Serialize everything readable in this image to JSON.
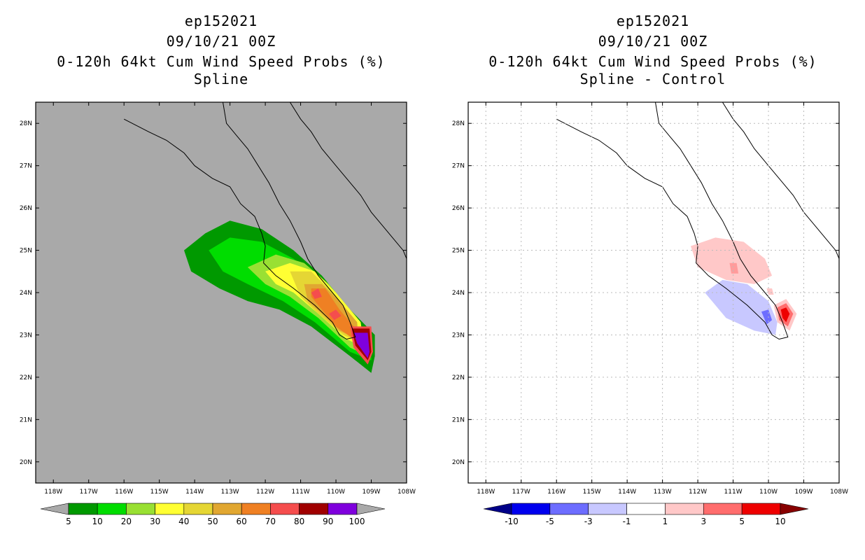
{
  "chart_data": [
    {
      "type": "heatmap",
      "storm_id": "ep152021",
      "valid_time": "09/10/21 00Z",
      "product": "0-120h 64kt Cum Wind Speed Probs (%)",
      "subtitle": "Spline",
      "xlim": [
        -118.5,
        -108
      ],
      "ylim": [
        19.5,
        28.5
      ],
      "x_ticks": [
        "118W",
        "117W",
        "116W",
        "115W",
        "114W",
        "113W",
        "112W",
        "111W",
        "110W",
        "109W",
        "108W"
      ],
      "y_ticks": [
        "20N",
        "21N",
        "22N",
        "23N",
        "24N",
        "25N",
        "26N",
        "27N",
        "28N"
      ],
      "background_color": "#a9a9a9",
      "grid": false,
      "colorbar": {
        "labels": [
          "5",
          "10",
          "20",
          "30",
          "40",
          "50",
          "60",
          "70",
          "80",
          "90",
          "100"
        ],
        "colors": [
          "#009900",
          "#00dd00",
          "#99e033",
          "#ffff33",
          "#e5d634",
          "#e1a731",
          "#ef8023",
          "#f54d4d",
          "#a00000",
          "#7f00dd"
        ],
        "below_color": "#a9a9a9",
        "above_color": "#a9a9a9"
      },
      "contours": [
        {
          "level": 5,
          "color": "#009900",
          "polygon": [
            [
              -114.3,
              25
            ],
            [
              -113.7,
              25.4
            ],
            [
              -113,
              25.7
            ],
            [
              -112.1,
              25.5
            ],
            [
              -111.2,
              25.0
            ],
            [
              -110.4,
              24.4
            ],
            [
              -109.6,
              23.6
            ],
            [
              -108.9,
              23
            ],
            [
              -108.9,
              22.5
            ],
            [
              -109,
              22.1
            ],
            [
              -109.6,
              22.5
            ],
            [
              -110.7,
              23.2
            ],
            [
              -111.6,
              23.6
            ],
            [
              -112.5,
              23.8
            ],
            [
              -113.3,
              24.1
            ],
            [
              -114.1,
              24.5
            ]
          ]
        },
        {
          "level": 10,
          "color": "#00dd00",
          "polygon": [
            [
              -113.6,
              25
            ],
            [
              -113.0,
              25.3
            ],
            [
              -112.1,
              25.2
            ],
            [
              -111.2,
              24.8
            ],
            [
              -110.3,
              24.2
            ],
            [
              -109.5,
              23.4
            ],
            [
              -109.0,
              22.8
            ],
            [
              -109.0,
              22.4
            ],
            [
              -109.6,
              22.6
            ],
            [
              -110.6,
              23.3
            ],
            [
              -111.5,
              23.8
            ],
            [
              -112.5,
              24.2
            ],
            [
              -113.2,
              24.5
            ]
          ]
        },
        {
          "level": 20,
          "color": "#99e033",
          "polygon": [
            [
              -112.5,
              24.6
            ],
            [
              -111.7,
              24.9
            ],
            [
              -110.9,
              24.7
            ],
            [
              -110.2,
              24.2
            ],
            [
              -109.4,
              23.4
            ],
            [
              -109.1,
              22.8
            ],
            [
              -109.1,
              22.5
            ],
            [
              -109.6,
              22.7
            ],
            [
              -110.5,
              23.4
            ],
            [
              -111.3,
              23.9
            ],
            [
              -112.0,
              24.2
            ]
          ]
        },
        {
          "level": 30,
          "color": "#ffff33",
          "polygon": [
            [
              -112.0,
              24.5
            ],
            [
              -111.3,
              24.7
            ],
            [
              -110.6,
              24.5
            ],
            [
              -110.0,
              24.0
            ],
            [
              -109.3,
              23.3
            ],
            [
              -109.2,
              22.7
            ],
            [
              -109.7,
              22.9
            ],
            [
              -110.5,
              23.5
            ],
            [
              -111.2,
              24.0
            ],
            [
              -111.7,
              24.2
            ]
          ]
        },
        {
          "level": 40,
          "color": "#e5d634",
          "polygon": [
            [
              -111.3,
              24.5
            ],
            [
              -110.7,
              24.5
            ],
            [
              -110.1,
              24.0
            ],
            [
              -109.4,
              23.3
            ],
            [
              -109.3,
              22.8
            ],
            [
              -109.8,
              23.0
            ],
            [
              -110.5,
              23.5
            ],
            [
              -111.0,
              23.9
            ]
          ]
        },
        {
          "level": 50,
          "color": "#e1a731",
          "polygon": [
            [
              -110.9,
              24.2
            ],
            [
              -110.4,
              24.2
            ],
            [
              -109.9,
              23.8
            ],
            [
              -109.4,
              23.3
            ],
            [
              -109.4,
              22.9
            ],
            [
              -109.9,
              23.1
            ],
            [
              -110.4,
              23.5
            ],
            [
              -110.8,
              23.8
            ]
          ]
        },
        {
          "level": 60,
          "color": "#ef8023",
          "polygon": [
            [
              -110.7,
              24.1
            ],
            [
              -110.3,
              24.1
            ],
            [
              -109.9,
              23.6
            ],
            [
              -109.5,
              23.2
            ],
            [
              -109.5,
              22.9
            ],
            [
              -110.0,
              23.2
            ],
            [
              -110.4,
              23.6
            ],
            [
              -110.7,
              23.9
            ]
          ]
        },
        {
          "level": 70,
          "color": "#f54d4d",
          "polygon": [
            [
              -110.7,
              24.0
            ],
            [
              -110.5,
              24.1
            ],
            [
              -110.4,
              23.9
            ],
            [
              -110.6,
              23.85
            ]
          ]
        },
        {
          "level": 70,
          "color": "#f54d4d",
          "polygon": [
            [
              -110.2,
              23.5
            ],
            [
              -110.0,
              23.6
            ],
            [
              -109.85,
              23.45
            ],
            [
              -110.05,
              23.35
            ]
          ]
        },
        {
          "level": 70,
          "color": "#f54d4d",
          "polygon": [
            [
              -109.6,
              23.2
            ],
            [
              -109.0,
              23.2
            ],
            [
              -108.95,
              22.6
            ],
            [
              -109.1,
              22.3
            ],
            [
              -109.5,
              22.7
            ]
          ]
        },
        {
          "level": 80,
          "color": "#a00000",
          "polygon": [
            [
              -109.55,
              23.15
            ],
            [
              -109.05,
              23.15
            ],
            [
              -109.0,
              22.6
            ],
            [
              -109.1,
              22.4
            ],
            [
              -109.45,
              22.75
            ]
          ]
        },
        {
          "level": 90,
          "color": "#7f00dd",
          "polygon": [
            [
              -109.5,
              23.05
            ],
            [
              -109.1,
              23.05
            ],
            [
              -109.05,
              22.6
            ],
            [
              -109.1,
              22.45
            ],
            [
              -109.4,
              22.8
            ]
          ]
        }
      ]
    },
    {
      "type": "heatmap",
      "storm_id": "ep152021",
      "valid_time": "09/10/21 00Z",
      "product": "0-120h 64kt Cum Wind Speed Probs (%)",
      "subtitle": "Spline - Control",
      "xlim": [
        -118.5,
        -108
      ],
      "ylim": [
        19.5,
        28.5
      ],
      "x_ticks": [
        "118W",
        "117W",
        "116W",
        "115W",
        "114W",
        "113W",
        "112W",
        "111W",
        "110W",
        "109W",
        "108W"
      ],
      "y_ticks": [
        "20N",
        "21N",
        "22N",
        "23N",
        "24N",
        "25N",
        "26N",
        "27N",
        "28N"
      ],
      "background_color": "#ffffff",
      "grid": true,
      "colorbar": {
        "labels": [
          "-10",
          "-5",
          "-3",
          "-1",
          "1",
          "3",
          "5",
          "10"
        ],
        "colors": [
          "#0000ee",
          "#6d6dff",
          "#c8c8ff",
          "#ffffff",
          "#ffc8c8",
          "#ff6d6d",
          "#ee0000"
        ],
        "below_color": "#000088",
        "above_color": "#880000"
      },
      "contours": [
        {
          "level": 1,
          "color": "#ffc8c8",
          "polygon": [
            [
              -112.2,
              25.1
            ],
            [
              -111.5,
              25.3
            ],
            [
              -110.7,
              25.2
            ],
            [
              -110.1,
              24.8
            ],
            [
              -109.9,
              24.4
            ],
            [
              -110.4,
              24.2
            ],
            [
              -111.2,
              24.3
            ],
            [
              -112.0,
              24.6
            ]
          ]
        },
        {
          "level": 3,
          "color": "#ff9b9b",
          "polygon": [
            [
              -111.1,
              24.7
            ],
            [
              -110.9,
              24.7
            ],
            [
              -110.85,
              24.45
            ],
            [
              -111.05,
              24.45
            ]
          ]
        },
        {
          "level": -1,
          "color": "#c8c8ff",
          "polygon": [
            [
              -111.8,
              24.0
            ],
            [
              -111.3,
              24.3
            ],
            [
              -110.6,
              24.2
            ],
            [
              -110.0,
              23.8
            ],
            [
              -109.75,
              23.3
            ],
            [
              -109.8,
              23.0
            ],
            [
              -110.4,
              23.1
            ],
            [
              -111.2,
              23.4
            ]
          ]
        },
        {
          "level": -3,
          "color": "#6d6dff",
          "polygon": [
            [
              -110.2,
              23.55
            ],
            [
              -110.0,
              23.6
            ],
            [
              -109.9,
              23.35
            ],
            [
              -110.05,
              23.25
            ]
          ]
        },
        {
          "level": 1,
          "color": "#ffc8c8",
          "polygon": [
            [
              -109.85,
              23.7
            ],
            [
              -109.5,
              23.85
            ],
            [
              -109.2,
              23.5
            ],
            [
              -109.4,
              23.1
            ],
            [
              -109.75,
              23.3
            ]
          ]
        },
        {
          "level": 3,
          "color": "#ff6d6d",
          "polygon": [
            [
              -109.75,
              23.65
            ],
            [
              -109.5,
              23.75
            ],
            [
              -109.3,
              23.5
            ],
            [
              -109.45,
              23.2
            ],
            [
              -109.7,
              23.35
            ]
          ]
        },
        {
          "level": 5,
          "color": "#ee0000",
          "polygon": [
            [
              -109.65,
              23.6
            ],
            [
              -109.5,
              23.65
            ],
            [
              -109.4,
              23.5
            ],
            [
              -109.5,
              23.3
            ],
            [
              -109.6,
              23.4
            ]
          ]
        },
        {
          "level": 1,
          "color": "#ffc8c8",
          "polygon": [
            [
              -110.05,
              24.1
            ],
            [
              -109.9,
              24.1
            ],
            [
              -109.85,
              23.95
            ],
            [
              -110.0,
              23.95
            ]
          ]
        }
      ]
    }
  ]
}
